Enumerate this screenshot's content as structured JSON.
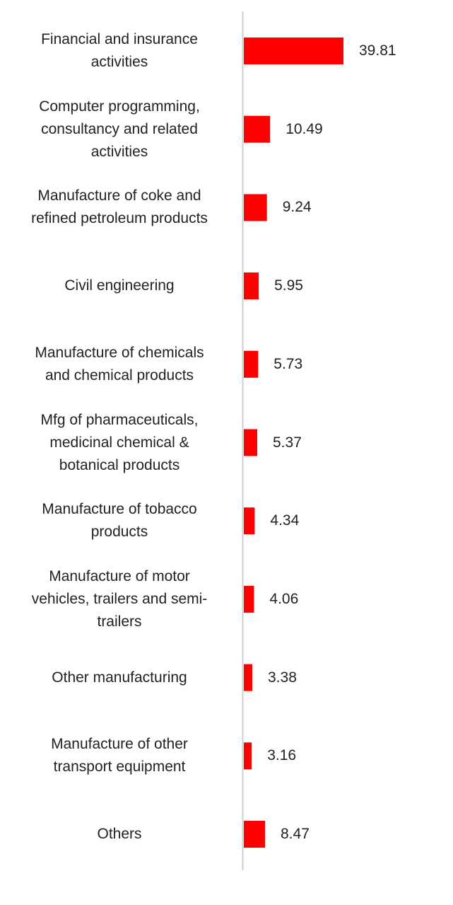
{
  "chart_data": {
    "type": "bar",
    "orientation": "horizontal",
    "categories": [
      "Financial and insurance activities",
      "Computer programming, consultancy and related activities",
      "Manufacture of coke and refined petroleum products",
      "Civil engineering",
      "Manufacture of chemicals and chemical products",
      "Mfg of pharmaceuticals, medicinal chemical & botanical products",
      "Manufacture of tobacco products",
      "Manufacture of motor vehicles, trailers and semi-trailers",
      "Other manufacturing",
      "Manufacture of other transport equipment",
      "Others"
    ],
    "category_lines": [
      [
        "Financial and insurance",
        "activities"
      ],
      [
        "Computer programming,",
        "consultancy and related",
        "activities"
      ],
      [
        "Manufacture of coke and",
        "refined petroleum products"
      ],
      [
        "Civil engineering"
      ],
      [
        "Manufacture of chemicals",
        "and chemical products"
      ],
      [
        "Mfg of pharmaceuticals,",
        "medicinal chemical &",
        "botanical products"
      ],
      [
        "Manufacture of tobacco",
        "products"
      ],
      [
        "Manufacture of motor",
        "vehicles, trailers and semi-",
        "trailers"
      ],
      [
        "Other manufacturing"
      ],
      [
        "Manufacture of other",
        "transport equipment"
      ],
      [
        "Others"
      ]
    ],
    "values": [
      39.81,
      10.49,
      9.24,
      5.95,
      5.73,
      5.37,
      4.34,
      4.06,
      3.38,
      3.16,
      8.47
    ],
    "value_labels": [
      "39.81",
      "10.49",
      "9.24",
      "5.95",
      "5.73",
      "5.37",
      "4.34",
      "4.06",
      "3.38",
      "3.16",
      "8.47"
    ],
    "bar_color": "#ff0000",
    "axis_color": "#cccccc",
    "title": "",
    "xlabel": "",
    "ylabel": "",
    "grid": false,
    "legend": "none"
  }
}
